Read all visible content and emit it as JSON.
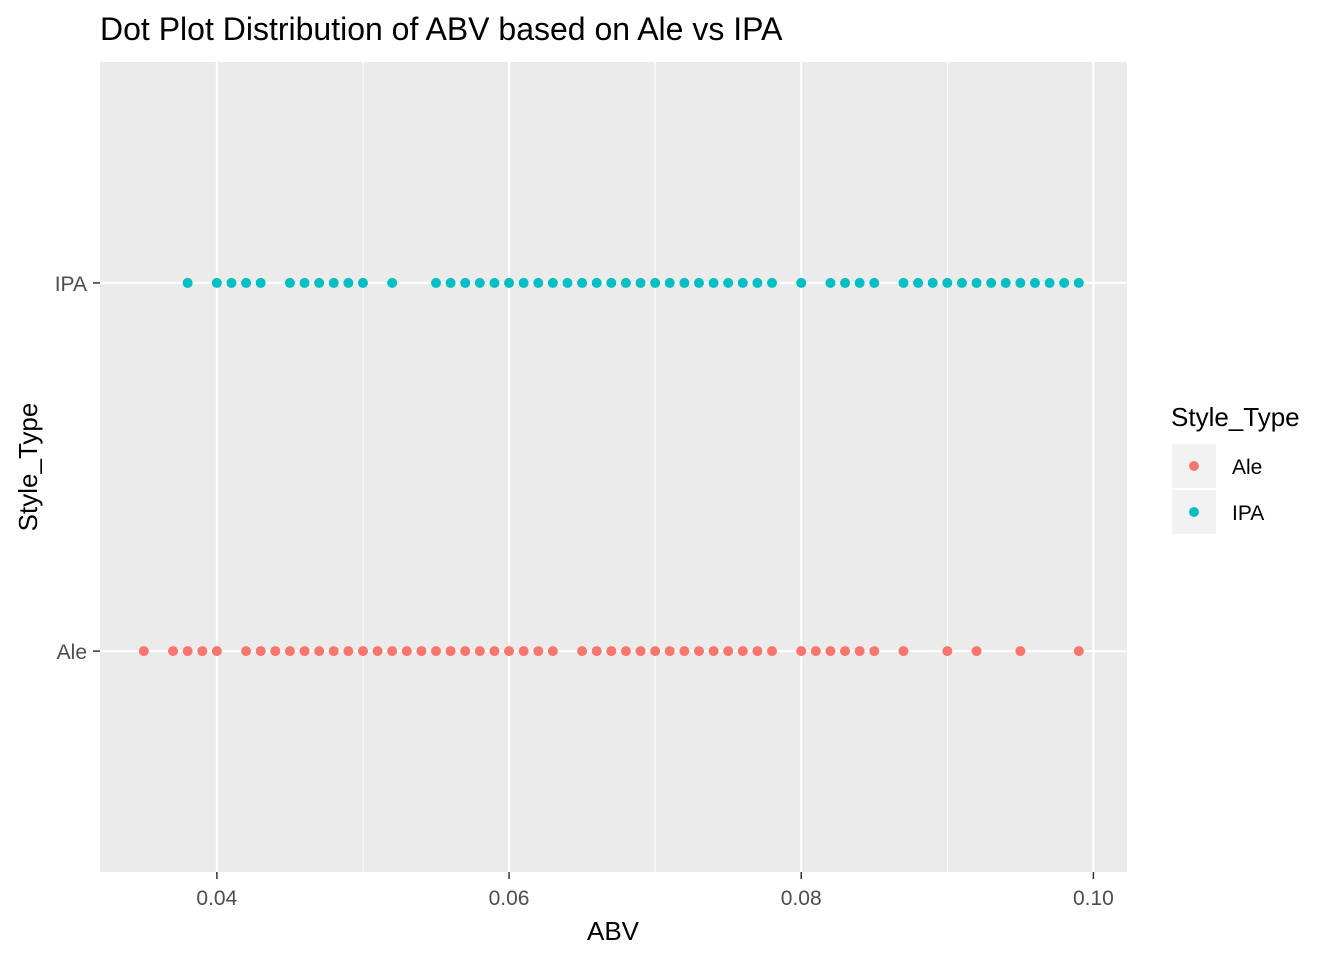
{
  "chart_data": {
    "type": "scatter",
    "title": "Dot Plot Distribution of ABV based on Ale vs IPA",
    "xlabel": "ABV",
    "ylabel": "Style_Type",
    "xlim": [
      0.032,
      0.1023
    ],
    "x_ticks": [
      "0.04",
      "0.06",
      "0.08",
      "0.10"
    ],
    "x_tick_values": [
      0.04,
      0.06,
      0.08,
      0.1
    ],
    "y_categories": [
      "Ale",
      "IPA"
    ],
    "grid": true,
    "legend": {
      "title": "Style_Type",
      "position": "right"
    },
    "series": [
      {
        "name": "Ale",
        "color": "#F8766D",
        "category": "Ale",
        "x": [
          0.035,
          0.037,
          0.038,
          0.039,
          0.04,
          0.042,
          0.043,
          0.044,
          0.045,
          0.046,
          0.047,
          0.048,
          0.049,
          0.05,
          0.051,
          0.052,
          0.053,
          0.054,
          0.055,
          0.056,
          0.057,
          0.058,
          0.059,
          0.06,
          0.061,
          0.062,
          0.063,
          0.065,
          0.066,
          0.067,
          0.068,
          0.069,
          0.07,
          0.071,
          0.072,
          0.073,
          0.074,
          0.075,
          0.076,
          0.077,
          0.078,
          0.08,
          0.081,
          0.082,
          0.083,
          0.084,
          0.085,
          0.087,
          0.09,
          0.092,
          0.095,
          0.099
        ]
      },
      {
        "name": "IPA",
        "color": "#00BFC4",
        "category": "IPA",
        "x": [
          0.038,
          0.04,
          0.041,
          0.042,
          0.043,
          0.045,
          0.046,
          0.047,
          0.048,
          0.049,
          0.05,
          0.052,
          0.055,
          0.056,
          0.057,
          0.058,
          0.059,
          0.06,
          0.061,
          0.062,
          0.063,
          0.064,
          0.065,
          0.066,
          0.067,
          0.068,
          0.069,
          0.07,
          0.071,
          0.072,
          0.073,
          0.074,
          0.075,
          0.076,
          0.077,
          0.078,
          0.08,
          0.082,
          0.083,
          0.084,
          0.085,
          0.087,
          0.088,
          0.089,
          0.09,
          0.091,
          0.092,
          0.093,
          0.094,
          0.095,
          0.096,
          0.097,
          0.098,
          0.099
        ]
      }
    ]
  }
}
